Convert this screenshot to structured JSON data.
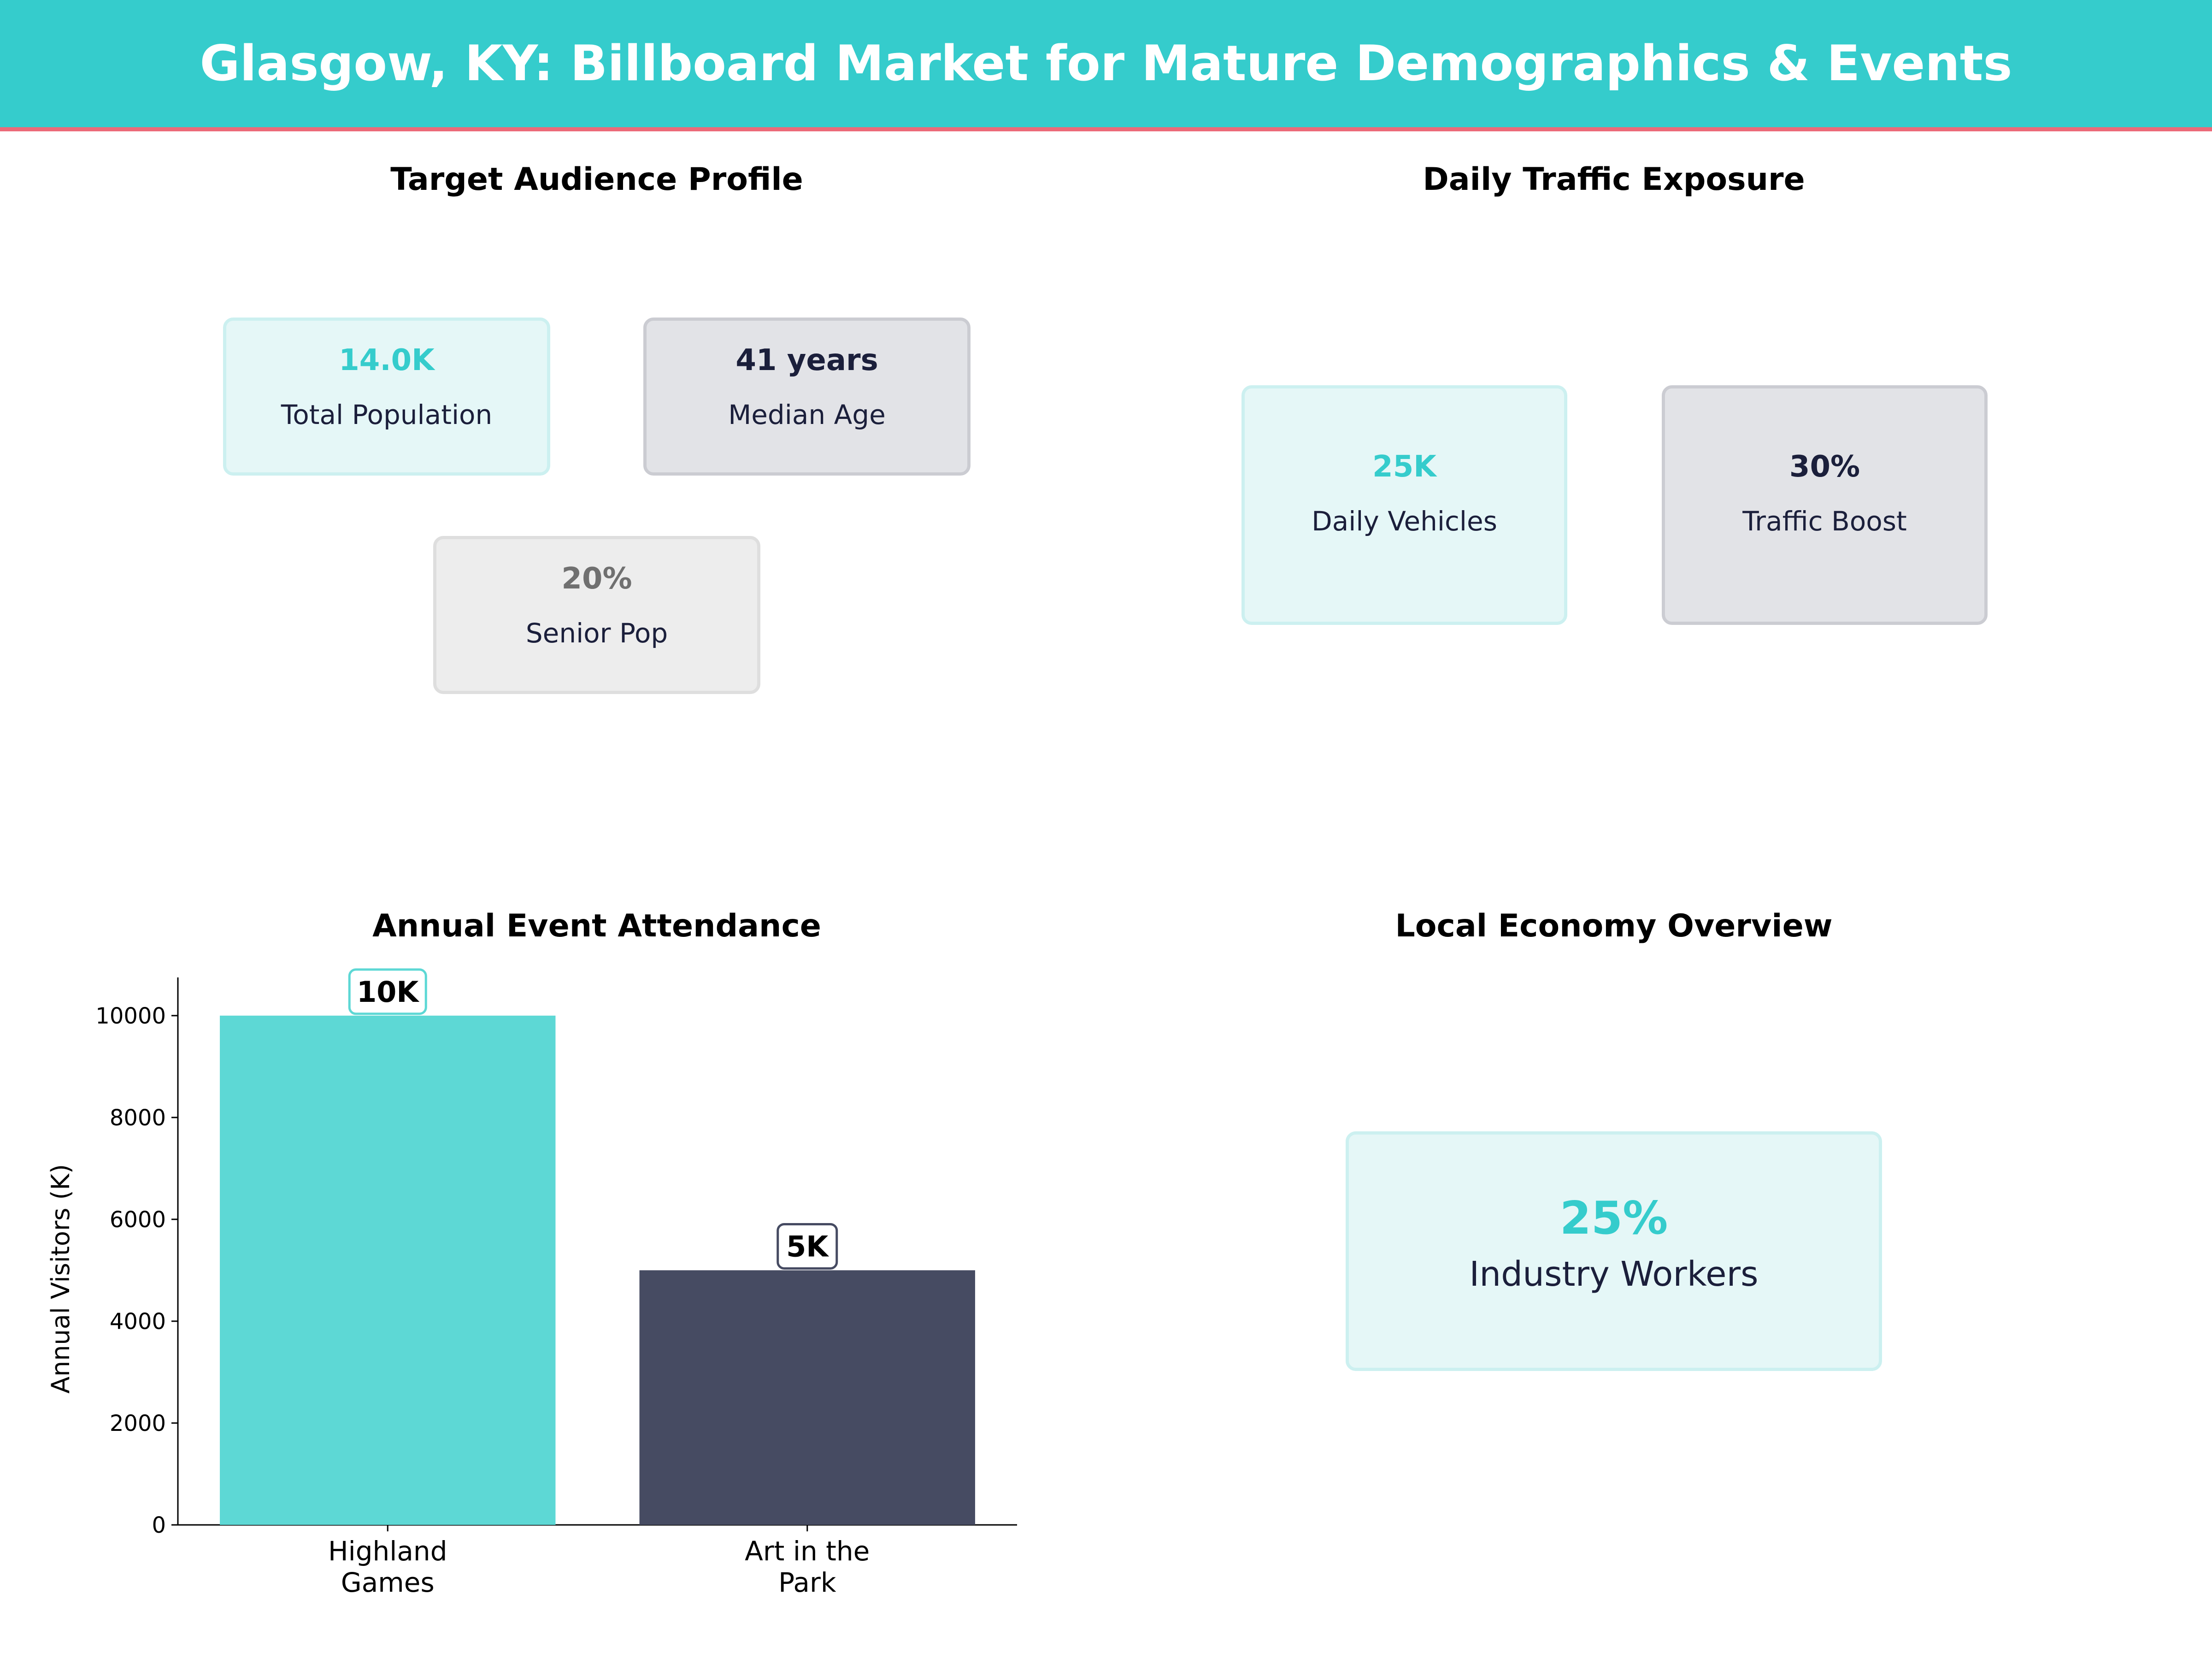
{
  "header": {
    "title": "Glasgow, KY: Billboard Market for Mature Demographics & Events"
  },
  "panels": {
    "audience": {
      "title": "Target Audience Profile",
      "cards": [
        {
          "value": "14.0K",
          "label": "Total Population"
        },
        {
          "value": "41 years",
          "label": "Median Age"
        },
        {
          "value": "20%",
          "label": "Senior Pop"
        }
      ]
    },
    "traffic": {
      "title": "Daily Traffic Exposure",
      "cards": [
        {
          "value": "25K",
          "label": "Daily Vehicles"
        },
        {
          "value": "30%",
          "label": "Traffic Boost"
        }
      ]
    },
    "economy": {
      "title": "Local Economy Overview",
      "cards": [
        {
          "value": "25%",
          "label": "Industry Workers"
        }
      ]
    }
  },
  "colors": {
    "header": "#35CCCC",
    "accent_line": "#EC6A78",
    "teal": "#35CCCC",
    "navy": "#1B1F3B",
    "gray": "#707070",
    "bar1": "#5DD8D5",
    "bar2": "#464B62"
  },
  "chart_data": {
    "type": "bar",
    "title": "Annual Event Attendance",
    "categories": [
      "Highland\nGames",
      "Art in the\nPark"
    ],
    "category_lines": [
      [
        "Highland",
        "Games"
      ],
      [
        "Art in the",
        "Park"
      ]
    ],
    "values": [
      10000,
      5000
    ],
    "data_labels": [
      "10K",
      "5K"
    ],
    "xlabel": "",
    "ylabel": "Annual Visitors (K)",
    "ylim": [
      0,
      10750
    ],
    "yticks": [
      0,
      2000,
      4000,
      6000,
      8000,
      10000
    ],
    "ytick_labels": [
      "0",
      "2000",
      "4000",
      "6000",
      "8000",
      "10000"
    ],
    "grid": false,
    "bar_colors": [
      "#5DD8D5",
      "#464B62"
    ]
  }
}
